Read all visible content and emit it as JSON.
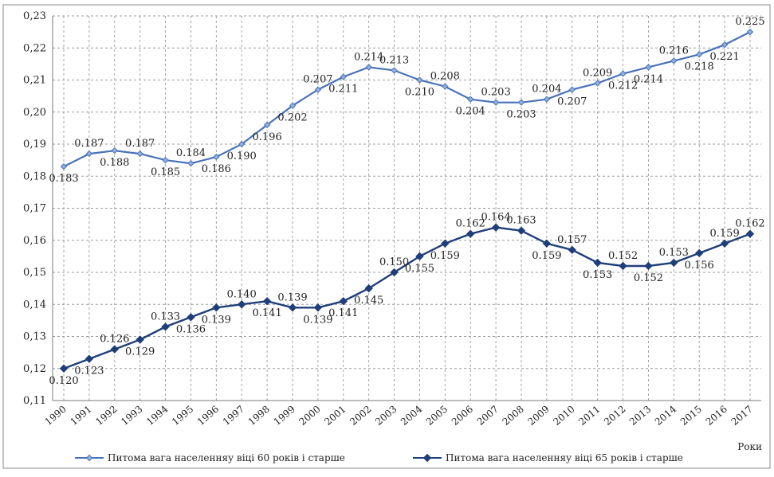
{
  "chart_data": {
    "type": "line",
    "title": "",
    "xlabel": "Роки",
    "ylabel": "",
    "ylim": [
      0.11,
      0.23
    ],
    "y_ticks": [
      "0,11",
      "0,12",
      "0,13",
      "0,14",
      "0,15",
      "0,16",
      "0,17",
      "0,18",
      "0,19",
      "0,20",
      "0,21",
      "0,22",
      "0,23"
    ],
    "grid": true,
    "legend_position": "bottom",
    "categories": [
      "1990",
      "1991",
      "1992",
      "1993",
      "1994",
      "1995",
      "1996",
      "1997",
      "1998",
      "1999",
      "2000",
      "2001",
      "2002",
      "2003",
      "2004",
      "2005",
      "2006",
      "2007",
      "2008",
      "2009",
      "2010",
      "2011",
      "2012",
      "2013",
      "2014",
      "2015",
      "2016",
      "2017"
    ],
    "series": [
      {
        "name": "Питома вага населенняу віці 60 років і старше",
        "color": "#4a72b8",
        "marker": "diamond-small",
        "values": [
          0.183,
          0.187,
          0.188,
          0.187,
          0.185,
          0.184,
          0.186,
          0.19,
          0.196,
          0.202,
          0.207,
          0.211,
          0.214,
          0.213,
          0.21,
          0.208,
          0.204,
          0.203,
          0.203,
          0.204,
          0.207,
          0.209,
          0.212,
          0.214,
          0.216,
          0.218,
          0.221,
          0.225
        ]
      },
      {
        "name": "Питома вага населенняу віці 65 років і старше",
        "color": "#1f3f7a",
        "marker": "diamond",
        "values": [
          0.12,
          0.123,
          0.126,
          0.129,
          0.133,
          0.136,
          0.139,
          0.14,
          0.141,
          0.139,
          0.139,
          0.141,
          0.145,
          0.15,
          0.155,
          0.159,
          0.162,
          0.164,
          0.163,
          0.159,
          0.157,
          0.153,
          0.152,
          0.152,
          0.153,
          0.156,
          0.159,
          0.162
        ]
      }
    ]
  }
}
